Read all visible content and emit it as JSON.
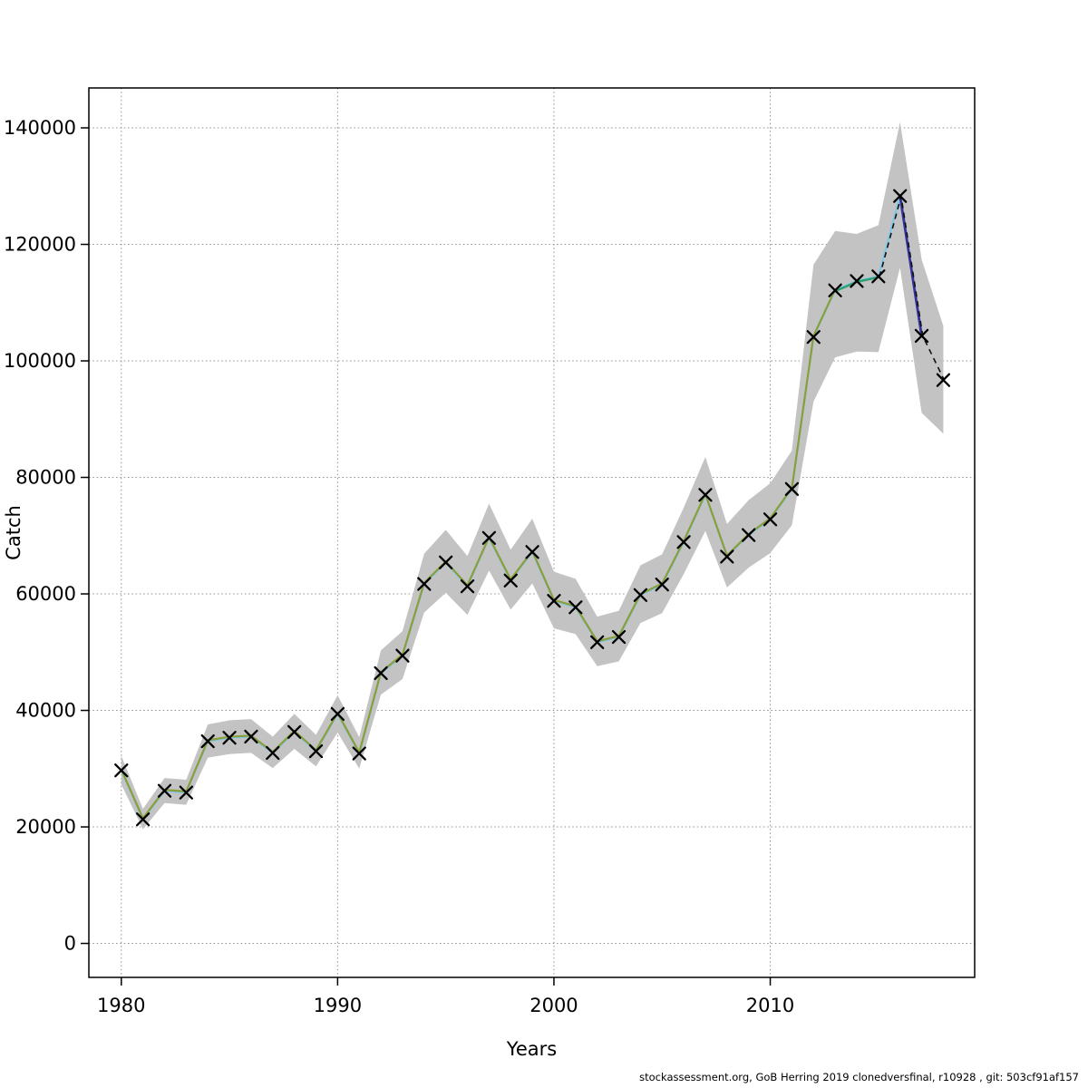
{
  "figure": {
    "footer": "stockassessment.org, GoB Herring 2019 clonedversfinal, r10928 , git: 503cf91af157",
    "background": "#ffffff"
  },
  "chart_data": {
    "type": "line",
    "title": "",
    "xlabel": "Years",
    "ylabel": "Catch",
    "x_ticks": [
      1980,
      1990,
      2000,
      2010
    ],
    "y_ticks": [
      0,
      20000,
      40000,
      60000,
      80000,
      100000,
      120000,
      140000
    ],
    "xlim": [
      1978.5,
      2019.45
    ],
    "ylim": [
      -5830,
      146850
    ],
    "grid": "dotted",
    "legend_position": "none",
    "band_color": "#c3c3c3",
    "grid_color": "#909090",
    "axis_color": "#000000",
    "marker": "x",
    "marker_color": "#000000",
    "years": [
      1980,
      1981,
      1982,
      1983,
      1984,
      1985,
      1986,
      1987,
      1988,
      1989,
      1990,
      1991,
      1992,
      1993,
      1994,
      1995,
      1996,
      1997,
      1998,
      1999,
      2000,
      2001,
      2002,
      2003,
      2004,
      2005,
      2006,
      2007,
      2008,
      2009,
      2010,
      2011,
      2012,
      2013,
      2014,
      2015,
      2016,
      2017,
      2018
    ],
    "catch": [
      29700,
      21300,
      26200,
      25900,
      34700,
      35300,
      35500,
      32700,
      36300,
      33000,
      39400,
      32600,
      46400,
      49400,
      61700,
      65400,
      61300,
      69600,
      62300,
      67200,
      58800,
      57700,
      51700,
      52600,
      59800,
      61600,
      68900,
      77000,
      66400,
      70100,
      72800,
      78000,
      104100,
      112100,
      113700,
      114500,
      128300,
      104300,
      96700
    ],
    "band_lower": [
      27300,
      19600,
      24100,
      23800,
      31900,
      32500,
      32700,
      30100,
      33400,
      30400,
      36200,
      30000,
      42700,
      45400,
      56800,
      60200,
      56400,
      64000,
      57300,
      61800,
      54100,
      53100,
      47600,
      48400,
      55000,
      56700,
      63400,
      70800,
      61100,
      64500,
      67000,
      71800,
      93000,
      100600,
      101600,
      101500,
      116000,
      91100,
      87500
    ],
    "band_upper": [
      32200,
      23100,
      28400,
      28100,
      37600,
      38300,
      38500,
      35500,
      39400,
      35800,
      42600,
      35400,
      50300,
      53600,
      66900,
      71000,
      66500,
      75500,
      67600,
      72900,
      63800,
      62600,
      56100,
      57100,
      64900,
      66800,
      74800,
      83500,
      72000,
      76100,
      79000,
      84600,
      116500,
      122300,
      121800,
      123300,
      141000,
      117400,
      106000
    ],
    "series": [
      {
        "name": "run-cyan",
        "color": "#7dc8ea",
        "from_year": 1980,
        "to_year": 2016,
        "width": 2.2,
        "dash": "",
        "dx": 0,
        "dy": 0,
        "values_ref": "catch"
      },
      {
        "name": "run-olive",
        "color": "#8a9e3a",
        "from_year": 1980,
        "to_year": 2013,
        "width": 2.2,
        "dash": "",
        "dx": 0,
        "dy": -1.1,
        "values_ref": "catch"
      },
      {
        "name": "run-seagreen",
        "color": "#2aa06e",
        "from_year": 2013,
        "to_year": 2015,
        "width": 2.4,
        "dash": "",
        "dx": 0,
        "dy": 0.9,
        "values_ref": "catch"
      },
      {
        "name": "run-navy",
        "color": "#32329b",
        "from_year": 2016,
        "to_year": 2017,
        "width": 2.8,
        "dash": "",
        "dx": 0,
        "dy": 0,
        "values_ref": "catch"
      },
      {
        "name": "forecast-dashed",
        "color": "#101010",
        "from_year": 2015,
        "to_year": 2018,
        "width": 1.6,
        "dash": "6,5",
        "dx": 1.2,
        "dy": 0.3,
        "values_ref": "catch"
      }
    ]
  }
}
